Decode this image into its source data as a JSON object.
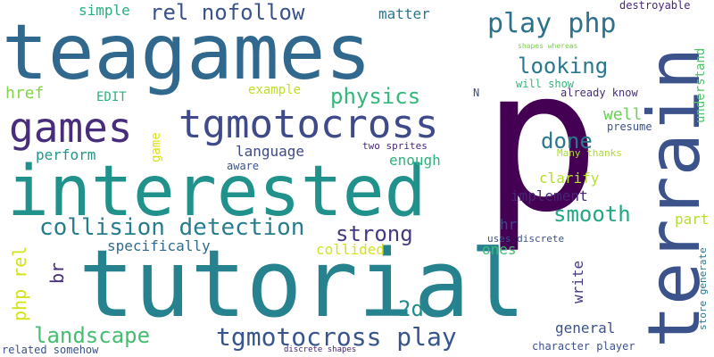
{
  "words": [
    {
      "text": "teagames",
      "color": "#31688e",
      "size": 86
    },
    {
      "text": "p",
      "color": "#440154",
      "size": 220
    },
    {
      "text": "terrain",
      "color": "#3b528b",
      "size": 80
    },
    {
      "text": "interested",
      "color": "#21918c",
      "size": 78
    },
    {
      "text": "tutorial",
      "color": "#26828e",
      "size": 104
    },
    {
      "text": "games",
      "color": "#472d7b",
      "size": 46
    },
    {
      "text": "tgmotocross",
      "color": "#3e4a89",
      "size": 44
    },
    {
      "text": "play php",
      "color": "#2c728e",
      "size": 30
    },
    {
      "text": "rel nofollow",
      "color": "#3b528b",
      "size": 24
    },
    {
      "text": "looking",
      "color": "#2a788e",
      "size": 24
    },
    {
      "text": "physics",
      "color": "#35b779",
      "size": 24
    },
    {
      "text": "done",
      "color": "#2a788e",
      "size": 24
    },
    {
      "text": "collision detection",
      "color": "#287d8e",
      "size": 26
    },
    {
      "text": "smooth",
      "color": "#22a884",
      "size": 24
    },
    {
      "text": "strong",
      "color": "#443983",
      "size": 24
    },
    {
      "text": "landscape",
      "color": "#44bf70",
      "size": 24
    },
    {
      "text": "tgmotocross play",
      "color": "#39568c",
      "size": 28
    },
    {
      "text": "2d",
      "color": "#238a8d",
      "size": 24
    },
    {
      "text": "simple",
      "color": "#29af7f",
      "size": 16
    },
    {
      "text": "matter",
      "color": "#2a788e",
      "size": 16
    },
    {
      "text": "destroyable",
      "color": "#482878",
      "size": 12
    },
    {
      "text": "understand",
      "color": "#52c569",
      "size": 14
    },
    {
      "text": "href",
      "color": "#84d44b",
      "size": 18
    },
    {
      "text": "EDIT",
      "color": "#2db27d",
      "size": 14
    },
    {
      "text": "example",
      "color": "#bddf26",
      "size": 14
    },
    {
      "text": "N",
      "color": "#3e4a89",
      "size": 12
    },
    {
      "text": "will show",
      "color": "#35b779",
      "size": 12
    },
    {
      "text": "already know",
      "color": "#472d7b",
      "size": 12
    },
    {
      "text": "shapes whereas",
      "color": "#7ad151",
      "size": 8
    },
    {
      "text": "well",
      "color": "#6ccd5a",
      "size": 18
    },
    {
      "text": "presume",
      "color": "#3b528b",
      "size": 12
    },
    {
      "text": "game",
      "color": "#d8e219",
      "size": 14
    },
    {
      "text": "language",
      "color": "#3e4a89",
      "size": 16
    },
    {
      "text": "two sprites",
      "color": "#482878",
      "size": 11
    },
    {
      "text": "Many thanks",
      "color": "#addc30",
      "size": 11
    },
    {
      "text": "perform",
      "color": "#1f988b",
      "size": 16
    },
    {
      "text": "aware",
      "color": "#3b528b",
      "size": 12
    },
    {
      "text": "enough",
      "color": "#2db27d",
      "size": 16
    },
    {
      "text": "clarify",
      "color": "#b5de2b",
      "size": 16
    },
    {
      "text": "implement",
      "color": "#482475",
      "size": 16
    },
    {
      "text": "part",
      "color": "#b5de2b",
      "size": 16
    },
    {
      "text": "hr",
      "color": "#414487",
      "size": 16
    },
    {
      "text": "specifically",
      "color": "#306a8e",
      "size": 16
    },
    {
      "text": "collided",
      "color": "#d2e21b",
      "size": 16
    },
    {
      "text": "ones",
      "color": "#3fbc73",
      "size": 16
    },
    {
      "text": "uses discrete",
      "color": "#3b528b",
      "size": 11
    },
    {
      "text": "br",
      "color": "#472d7b",
      "size": 20
    },
    {
      "text": "php rel",
      "color": "#d2e21b",
      "size": 20
    },
    {
      "text": "write",
      "color": "#443a83",
      "size": 16
    },
    {
      "text": "general",
      "color": "#3b528b",
      "size": 16
    },
    {
      "text": "store generate",
      "color": "#2a788e",
      "size": 11
    },
    {
      "text": "character player",
      "color": "#3b528b",
      "size": 12
    },
    {
      "text": "related somehow",
      "color": "#3b528b",
      "size": 12
    },
    {
      "text": "discrete shapes",
      "color": "#482878",
      "size": 9
    }
  ]
}
